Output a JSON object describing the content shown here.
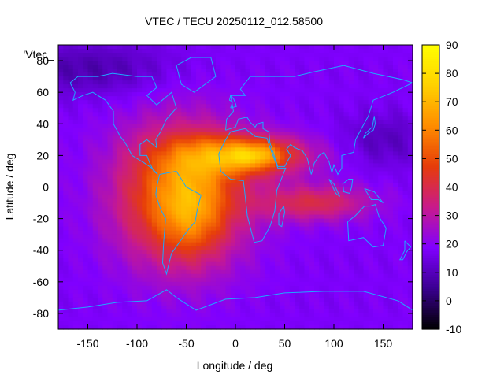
{
  "chart_data": {
    "type": "heatmap",
    "title": "VTEC / TECU 20250112_012.58500",
    "xlabel": "Longitude / deg",
    "ylabel": "Latitude / deg",
    "xlim": [
      -180,
      180
    ],
    "ylim": [
      -90,
      90
    ],
    "x_ticks": [
      -150,
      -100,
      -50,
      0,
      50,
      100,
      150
    ],
    "y_ticks": [
      -80,
      -60,
      -40,
      -20,
      0,
      20,
      40,
      60,
      80
    ],
    "colorbar": {
      "range": [
        -10,
        90
      ],
      "ticks": [
        -10,
        0,
        10,
        20,
        30,
        40,
        50,
        60,
        70,
        80,
        90
      ],
      "palette": [
        "#000000",
        "#3a0090",
        "#8000ff",
        "#c81a8c",
        "#e63c0a",
        "#ff8c00",
        "#ffd000",
        "#ffff00"
      ]
    },
    "legend_label": "'Vtec_",
    "background_level": 18,
    "features": [
      {
        "name": "american-crest",
        "lon": -55,
        "lat": -5,
        "sigma_lon": 45,
        "sigma_lat": 30,
        "amplitude": 42
      },
      {
        "name": "south-american-peak",
        "lon": -45,
        "lat": -15,
        "sigma_lon": 22,
        "sigma_lat": 20,
        "amplitude": 14
      },
      {
        "name": "african-crest",
        "lon": 10,
        "lat": 20,
        "sigma_lon": 45,
        "sigma_lat": 9,
        "amplitude": 38
      },
      {
        "name": "north-african-peak",
        "lon": 20,
        "lat": 20,
        "sigma_lon": 18,
        "sigma_lat": 5,
        "amplitude": 15
      },
      {
        "name": "indian-ocean-band",
        "lon": 80,
        "lat": -10,
        "sigma_lon": 40,
        "sigma_lat": 8,
        "amplitude": 22
      },
      {
        "name": "polar-cap-north",
        "lon": -150,
        "lat": 75,
        "sigma_lon": 60,
        "sigma_lat": 12,
        "amplitude": -10
      },
      {
        "name": "north-asia-trough",
        "lon": 150,
        "lat": 30,
        "sigma_lon": 30,
        "sigma_lat": 12,
        "amplitude": -8
      }
    ],
    "coastlines": [
      {
        "name": "north-america",
        "points": [
          [
            -168,
            66
          ],
          [
            -160,
            70
          ],
          [
            -140,
            70
          ],
          [
            -125,
            72
          ],
          [
            -100,
            70
          ],
          [
            -85,
            70
          ],
          [
            -80,
            63
          ],
          [
            -90,
            58
          ],
          [
            -80,
            52
          ],
          [
            -65,
            60
          ],
          [
            -60,
            50
          ],
          [
            -70,
            43
          ],
          [
            -76,
            35
          ],
          [
            -81,
            30
          ],
          [
            -80,
            25
          ],
          [
            -90,
            30
          ],
          [
            -97,
            27
          ],
          [
            -97,
            20
          ],
          [
            -90,
            20
          ],
          [
            -87,
            15
          ],
          [
            -83,
            10
          ],
          [
            -79,
            8
          ],
          [
            -85,
            12
          ],
          [
            -92,
            15
          ],
          [
            -105,
            20
          ],
          [
            -112,
            28
          ],
          [
            -117,
            32
          ],
          [
            -124,
            40
          ],
          [
            -124,
            48
          ],
          [
            -132,
            55
          ],
          [
            -145,
            60
          ],
          [
            -155,
            58
          ],
          [
            -165,
            55
          ],
          [
            -163,
            60
          ],
          [
            -168,
            66
          ]
        ]
      },
      {
        "name": "south-america",
        "points": [
          [
            -77,
            8
          ],
          [
            -60,
            10
          ],
          [
            -50,
            0
          ],
          [
            -35,
            -5
          ],
          [
            -39,
            -15
          ],
          [
            -41,
            -22
          ],
          [
            -48,
            -27
          ],
          [
            -57,
            -35
          ],
          [
            -65,
            -42
          ],
          [
            -69,
            -52
          ],
          [
            -70,
            -55
          ],
          [
            -74,
            -48
          ],
          [
            -73,
            -35
          ],
          [
            -71,
            -20
          ],
          [
            -76,
            -14
          ],
          [
            -81,
            -5
          ],
          [
            -80,
            0
          ],
          [
            -77,
            8
          ]
        ]
      },
      {
        "name": "africa",
        "points": [
          [
            -17,
            21
          ],
          [
            -10,
            30
          ],
          [
            -5,
            35
          ],
          [
            10,
            37
          ],
          [
            20,
            32
          ],
          [
            32,
            31
          ],
          [
            35,
            25
          ],
          [
            43,
            12
          ],
          [
            51,
            12
          ],
          [
            42,
            -2
          ],
          [
            40,
            -15
          ],
          [
            35,
            -25
          ],
          [
            27,
            -34
          ],
          [
            19,
            -35
          ],
          [
            12,
            -18
          ],
          [
            9,
            -1
          ],
          [
            8,
            4
          ],
          [
            -5,
            5
          ],
          [
            -15,
            10
          ],
          [
            -17,
            21
          ]
        ]
      },
      {
        "name": "eurasia",
        "points": [
          [
            -10,
            36
          ],
          [
            -9,
            43
          ],
          [
            -2,
            48
          ],
          [
            -5,
            58
          ],
          [
            10,
            58
          ],
          [
            5,
            62
          ],
          [
            15,
            70
          ],
          [
            30,
            70
          ],
          [
            60,
            70
          ],
          [
            80,
            73
          ],
          [
            110,
            77
          ],
          [
            140,
            72
          ],
          [
            170,
            68
          ],
          [
            180,
            66
          ],
          [
            160,
            60
          ],
          [
            140,
            55
          ],
          [
            135,
            45
          ],
          [
            128,
            37
          ],
          [
            122,
            30
          ],
          [
            120,
            22
          ],
          [
            108,
            20
          ],
          [
            108,
            12
          ],
          [
            104,
            8
          ],
          [
            100,
            14
          ],
          [
            98,
            9
          ],
          [
            95,
            16
          ],
          [
            90,
            22
          ],
          [
            85,
            20
          ],
          [
            80,
            15
          ],
          [
            77,
            8
          ],
          [
            73,
            18
          ],
          [
            68,
            23
          ],
          [
            60,
            25
          ],
          [
            56,
            27
          ],
          [
            52,
            24
          ],
          [
            56,
            20
          ],
          [
            50,
            13
          ],
          [
            43,
            13
          ],
          [
            35,
            28
          ],
          [
            34,
            35
          ],
          [
            28,
            37
          ],
          [
            28,
            41
          ],
          [
            22,
            40
          ],
          [
            20,
            38
          ],
          [
            15,
            41
          ],
          [
            12,
            44
          ],
          [
            10,
            44
          ],
          [
            3,
            43
          ],
          [
            0,
            38
          ],
          [
            -10,
            36
          ]
        ]
      },
      {
        "name": "australia",
        "points": [
          [
            114,
            -22
          ],
          [
            122,
            -18
          ],
          [
            131,
            -12
          ],
          [
            137,
            -12
          ],
          [
            142,
            -11
          ],
          [
            146,
            -19
          ],
          [
            153,
            -26
          ],
          [
            150,
            -37
          ],
          [
            140,
            -38
          ],
          [
            130,
            -32
          ],
          [
            115,
            -34
          ],
          [
            114,
            -22
          ]
        ]
      },
      {
        "name": "greenland",
        "points": [
          [
            -60,
            77
          ],
          [
            -45,
            82
          ],
          [
            -25,
            82
          ],
          [
            -20,
            70
          ],
          [
            -42,
            60
          ],
          [
            -55,
            65
          ],
          [
            -60,
            77
          ]
        ]
      },
      {
        "name": "antarctica",
        "points": [
          [
            -180,
            -78
          ],
          [
            -150,
            -76
          ],
          [
            -120,
            -73
          ],
          [
            -90,
            -72
          ],
          [
            -70,
            -65
          ],
          [
            -60,
            -70
          ],
          [
            -40,
            -78
          ],
          [
            -10,
            -71
          ],
          [
            20,
            -70
          ],
          [
            50,
            -67
          ],
          [
            90,
            -66
          ],
          [
            130,
            -66
          ],
          [
            165,
            -72
          ],
          [
            180,
            -78
          ]
        ]
      },
      {
        "name": "new-zealand",
        "points": [
          [
            172,
            -34
          ],
          [
            178,
            -38
          ],
          [
            174,
            -41
          ],
          [
            170,
            -46
          ],
          [
            167,
            -46
          ],
          [
            172,
            -40
          ],
          [
            172,
            -34
          ]
        ]
      },
      {
        "name": "madagascar",
        "points": [
          [
            49,
            -12
          ],
          [
            50,
            -16
          ],
          [
            47,
            -25
          ],
          [
            44,
            -24
          ],
          [
            44,
            -17
          ],
          [
            49,
            -12
          ]
        ]
      },
      {
        "name": "japan",
        "points": [
          [
            130,
            31
          ],
          [
            135,
            34
          ],
          [
            140,
            36
          ],
          [
            142,
            40
          ],
          [
            141,
            45
          ],
          [
            139,
            38
          ],
          [
            132,
            34
          ],
          [
            130,
            31
          ]
        ]
      },
      {
        "name": "uk",
        "points": [
          [
            -5,
            50
          ],
          [
            1,
            51
          ],
          [
            0,
            53
          ],
          [
            -2,
            56
          ],
          [
            -5,
            58
          ],
          [
            -6,
            55
          ],
          [
            -3,
            54
          ],
          [
            -5,
            50
          ]
        ]
      },
      {
        "name": "borneo",
        "points": [
          [
            109,
            2
          ],
          [
            115,
            5
          ],
          [
            119,
            5
          ],
          [
            118,
            0
          ],
          [
            116,
            -4
          ],
          [
            110,
            -3
          ],
          [
            109,
            2
          ]
        ]
      },
      {
        "name": "sumatra",
        "points": [
          [
            95,
            5
          ],
          [
            100,
            2
          ],
          [
            106,
            -6
          ],
          [
            102,
            -4
          ],
          [
            95,
            5
          ]
        ]
      },
      {
        "name": "new-guinea",
        "points": [
          [
            131,
            -1
          ],
          [
            141,
            -3
          ],
          [
            150,
            -10
          ],
          [
            145,
            -8
          ],
          [
            138,
            -8
          ],
          [
            131,
            -1
          ]
        ]
      }
    ]
  }
}
